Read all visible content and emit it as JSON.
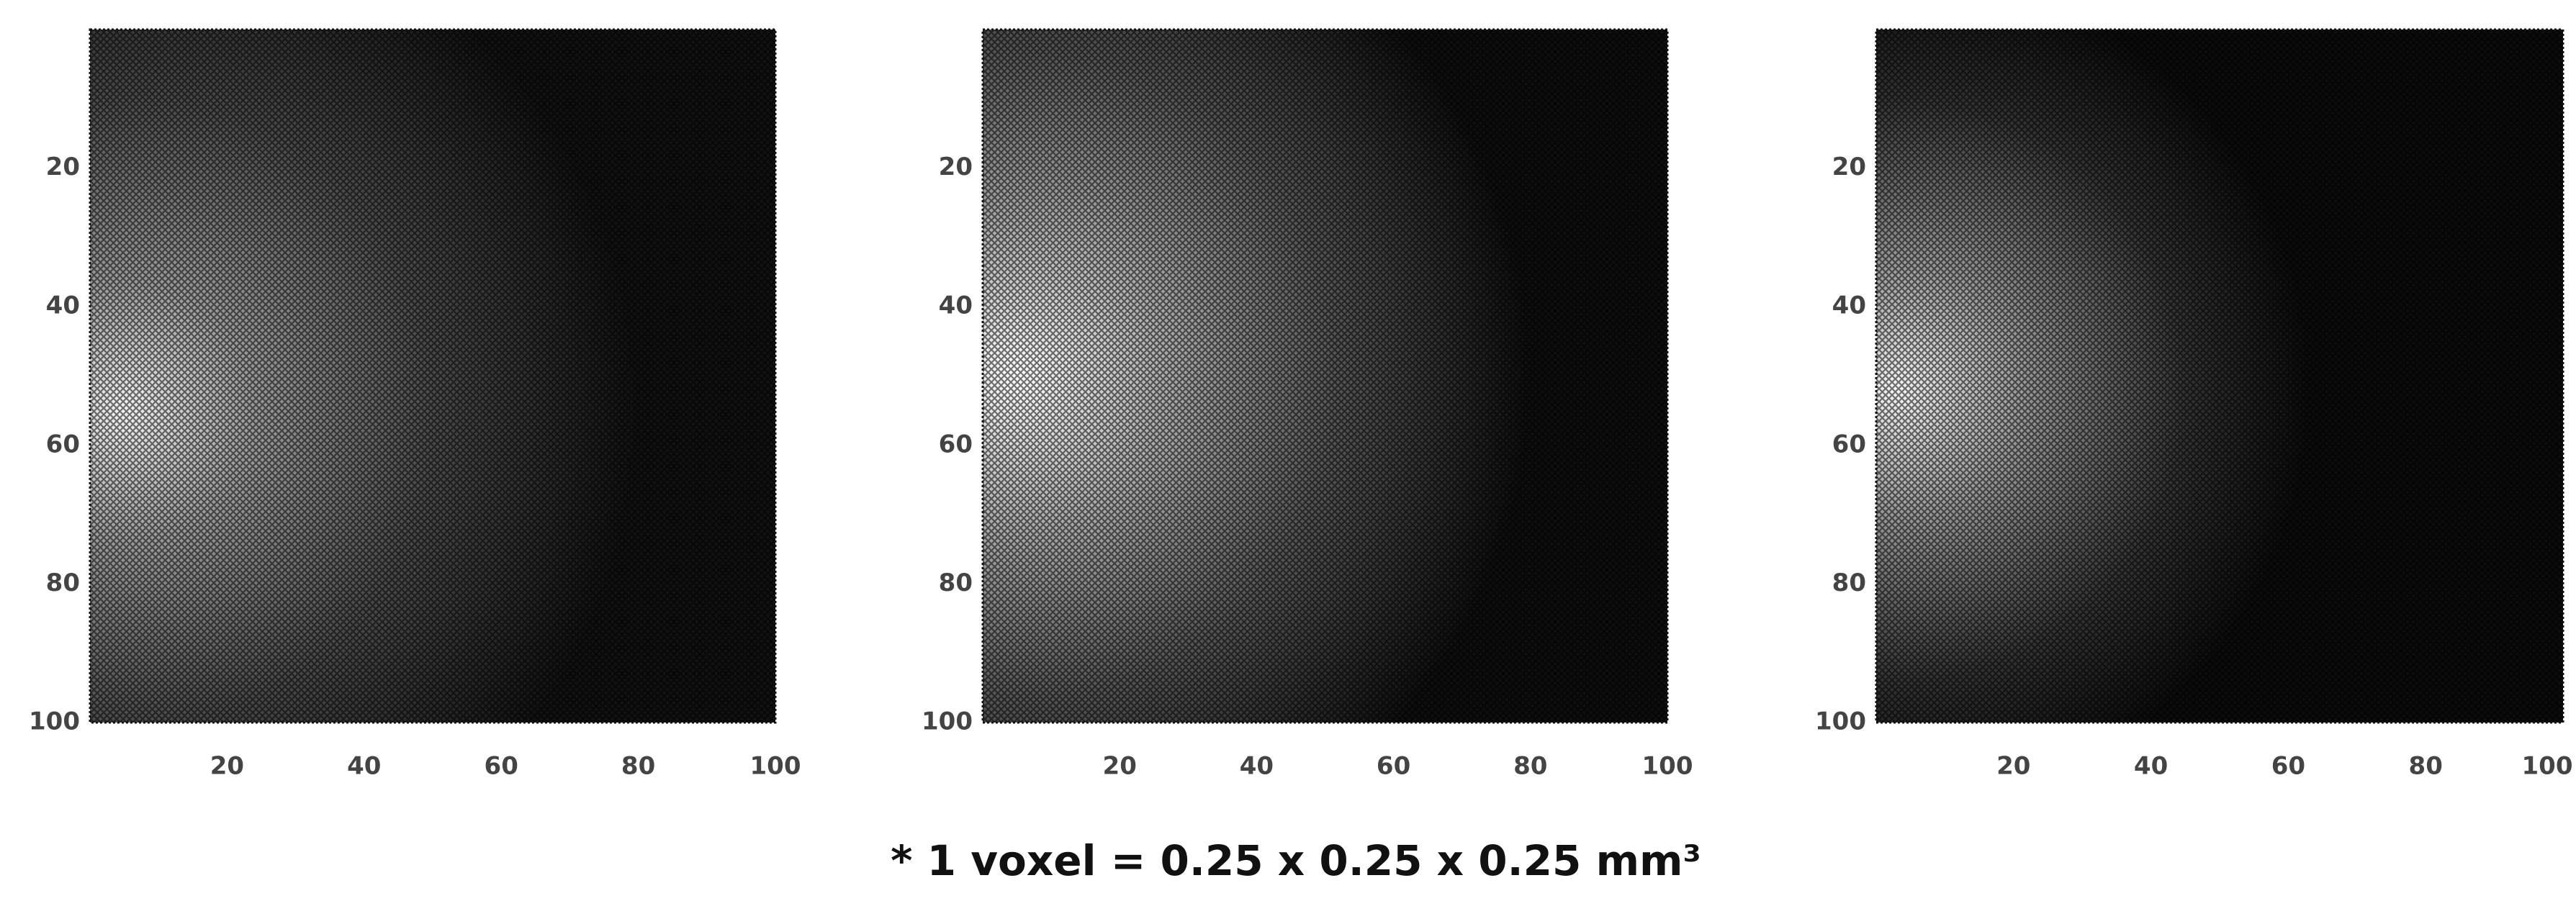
{
  "panels": [
    {
      "x_ticks": [
        "20",
        "40",
        "60",
        "80",
        "100"
      ],
      "y_ticks": [
        "20",
        "40",
        "60",
        "80",
        "100"
      ]
    },
    {
      "x_ticks": [
        "20",
        "40",
        "60",
        "80",
        "100"
      ],
      "y_ticks": [
        "20",
        "40",
        "60",
        "80",
        "100"
      ]
    },
    {
      "x_ticks": [
        "20",
        "40",
        "60",
        "80",
        "100"
      ],
      "y_ticks": [
        "20",
        "40",
        "60",
        "80",
        "100"
      ]
    }
  ],
  "caption": "* 1 voxel = 0.25 x 0.25 x 0.25 mm³"
}
